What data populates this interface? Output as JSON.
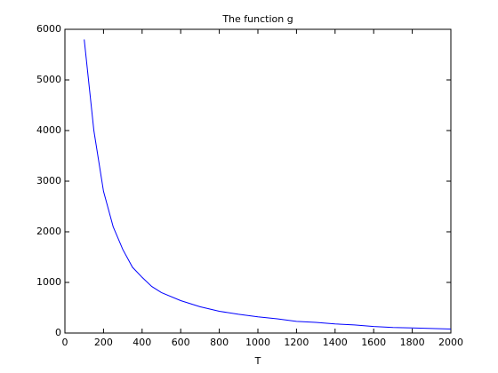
{
  "chart_data": {
    "type": "line",
    "title": "The function g",
    "x_label": "T",
    "series": [
      {
        "color": "#0000ff",
        "x": [
          100,
          150,
          200,
          250,
          300,
          350,
          400,
          450,
          500,
          600,
          700,
          800,
          900,
          1000,
          1100,
          1200,
          1300,
          1400,
          1500,
          1600,
          1700,
          1800,
          1900,
          2000
        ],
        "values": [
          5800,
          4000,
          2800,
          2100,
          1650,
          1300,
          1100,
          920,
          800,
          640,
          520,
          430,
          370,
          320,
          280,
          230,
          210,
          180,
          160,
          130,
          110,
          100,
          90,
          80
        ]
      }
    ],
    "xlim": [
      0,
      2000
    ],
    "xticks": [
      0,
      200,
      400,
      600,
      800,
      1000,
      1200,
      1400,
      1600,
      1800,
      2000
    ],
    "ylim": [
      0,
      6000
    ],
    "yticks": [
      0,
      1000,
      2000,
      3000,
      4000,
      5000,
      6000
    ],
    "grid": false
  }
}
